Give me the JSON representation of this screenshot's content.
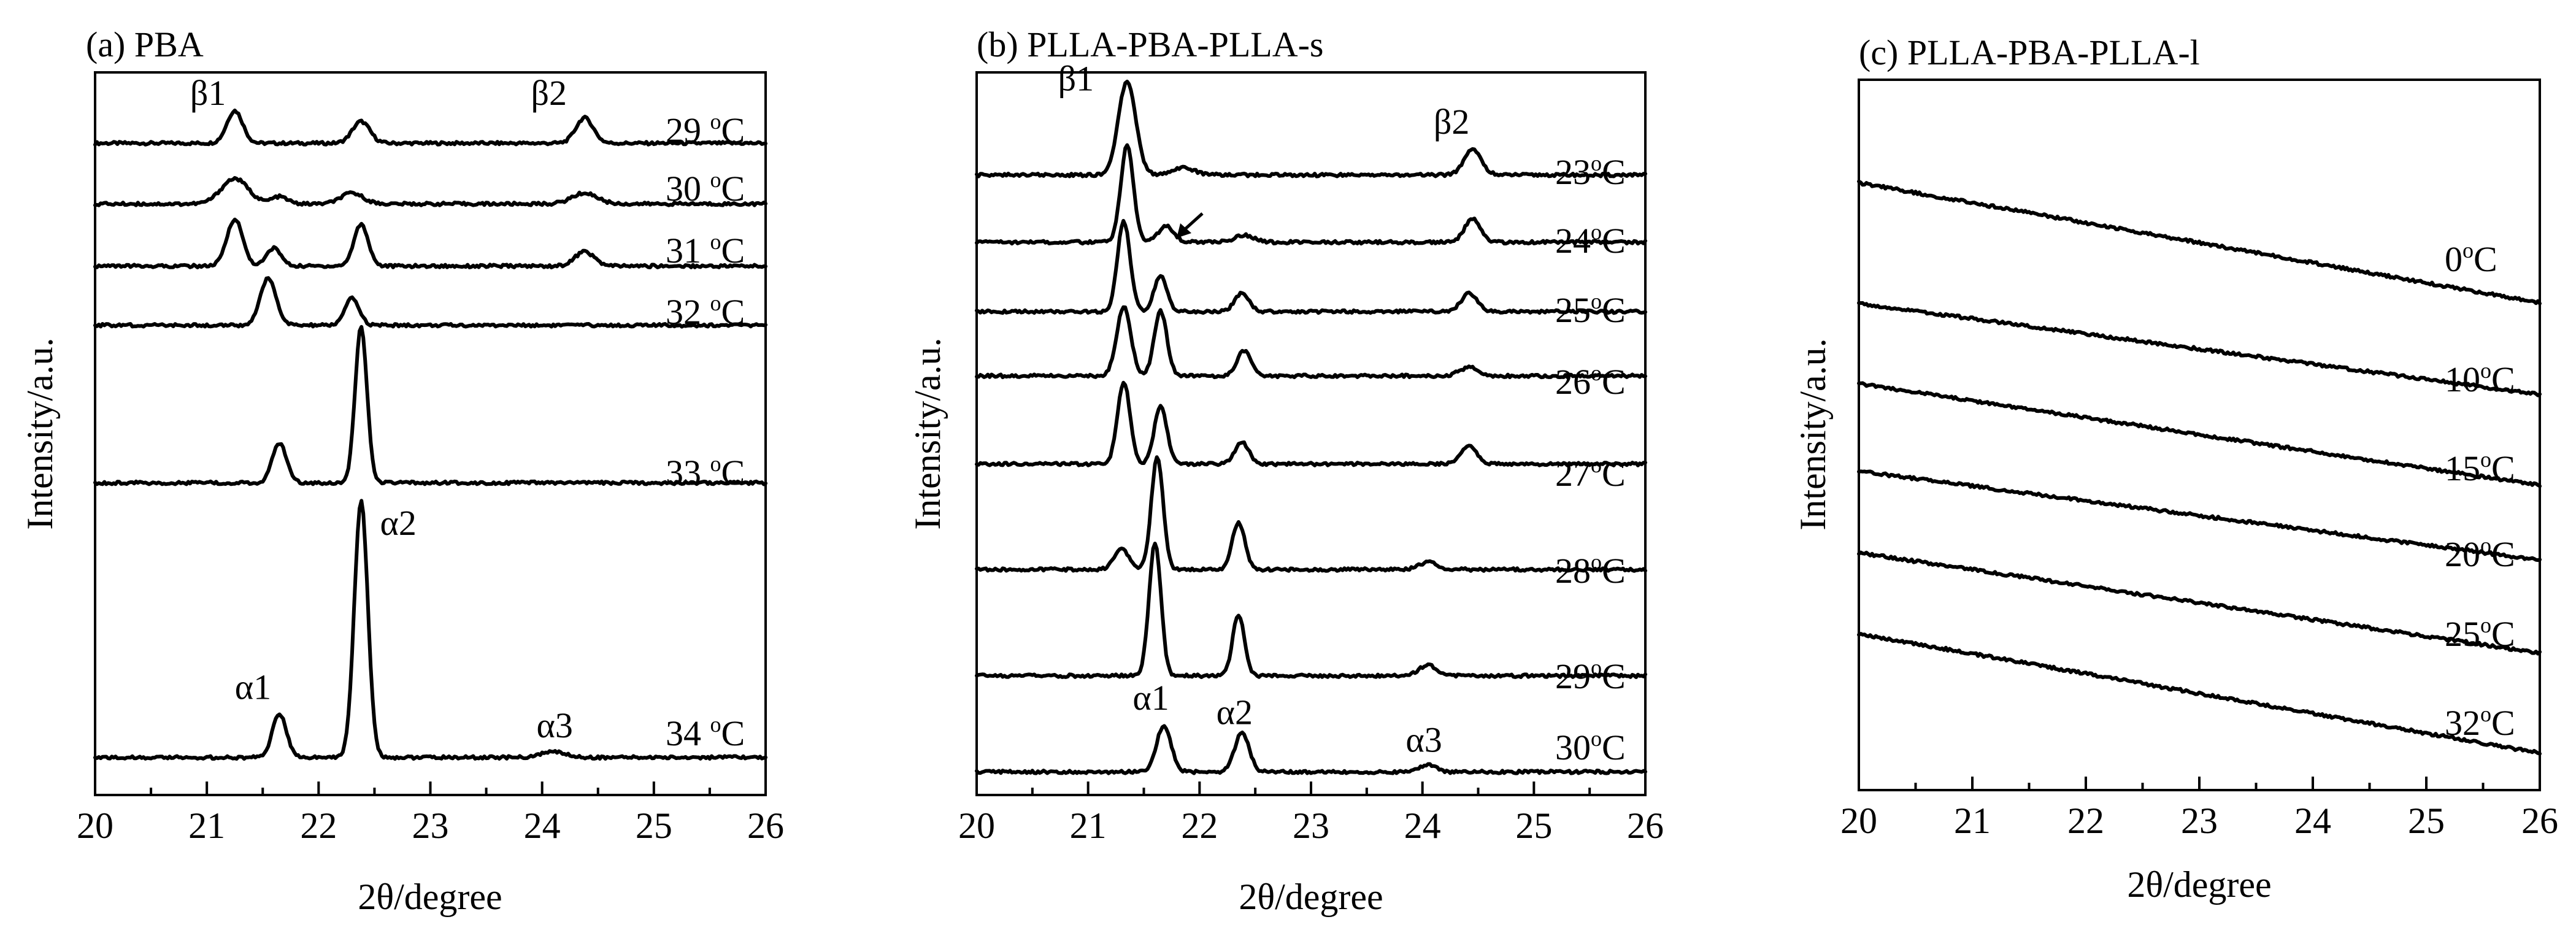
{
  "chart_data": [
    {
      "type": "line",
      "title": "(a) PBA",
      "xlabel": "2θ/degree",
      "ylabel": "Intensity/a.u.",
      "xlim": [
        20,
        26
      ],
      "xticks": [
        "20",
        "21",
        "22",
        "23",
        "24",
        "25",
        "26"
      ],
      "series": [
        {
          "name": "29 °C",
          "temp": "29",
          "baseline": 0.902,
          "slope": 0,
          "peaks": [
            [
              21.25,
              0.045,
              0.1
            ],
            [
              22.38,
              0.03,
              0.11
            ],
            [
              24.38,
              0.035,
              0.11
            ]
          ]
        },
        {
          "name": "30 °C",
          "temp": "30",
          "baseline": 0.818,
          "slope": 0,
          "peaks": [
            [
              21.25,
              0.035,
              0.17
            ],
            [
              21.65,
              0.01,
              0.1
            ],
            [
              22.3,
              0.015,
              0.14
            ],
            [
              24.38,
              0.015,
              0.16
            ]
          ]
        },
        {
          "name": "31 °C",
          "temp": "31",
          "baseline": 0.732,
          "slope": 0,
          "peaks": [
            [
              21.25,
              0.065,
              0.1
            ],
            [
              21.6,
              0.025,
              0.09
            ],
            [
              22.38,
              0.058,
              0.09
            ],
            [
              24.38,
              0.02,
              0.12
            ]
          ]
        },
        {
          "name": "32 °C",
          "temp": "32",
          "baseline": 0.65,
          "slope": 0,
          "peaks": [
            [
              21.55,
              0.065,
              0.1
            ],
            [
              22.3,
              0.037,
              0.09
            ]
          ]
        },
        {
          "name": "33 °C",
          "temp": "33",
          "baseline": 0.432,
          "slope": 0,
          "peaks": [
            [
              21.65,
              0.055,
              0.09
            ],
            [
              22.38,
              0.215,
              0.075
            ]
          ]
        },
        {
          "name": "34 °C",
          "temp": "34",
          "baseline": 0.052,
          "slope": 0,
          "peaks": [
            [
              21.65,
              0.06,
              0.09
            ],
            [
              22.38,
              0.355,
              0.085
            ],
            [
              24.1,
              0.008,
              0.15
            ]
          ]
        }
      ],
      "annotations": [
        {
          "text": "β1",
          "x": 20.85,
          "y": 0.955
        },
        {
          "text": "β2",
          "x": 23.9,
          "y": 0.955
        },
        {
          "text": "α2",
          "x": 22.55,
          "y": 0.36
        },
        {
          "text": "α1",
          "x": 21.25,
          "y": 0.133
        },
        {
          "text": "α3",
          "x": 23.95,
          "y": 0.08
        }
      ]
    },
    {
      "type": "line",
      "title": "(b) PLLA-PBA-PLLA-s",
      "xlabel": "2θ/degree",
      "ylabel": "Intensity/a.u.",
      "xlim": [
        20,
        26
      ],
      "xticks": [
        "20",
        "21",
        "22",
        "23",
        "24",
        "25",
        "26"
      ],
      "series": [
        {
          "name": "23°C",
          "temp": "23",
          "baseline": 0.858,
          "slope": 0,
          "peaks": [
            [
              21.35,
              0.13,
              0.11
            ],
            [
              21.85,
              0.01,
              0.15
            ],
            [
              24.45,
              0.035,
              0.11
            ]
          ]
        },
        {
          "name": "24°C",
          "temp": "24",
          "baseline": 0.765,
          "slope": 0,
          "peaks": [
            [
              21.35,
              0.135,
              0.08
            ],
            [
              21.7,
              0.022,
              0.1
            ],
            [
              22.4,
              0.01,
              0.12
            ],
            [
              24.45,
              0.033,
              0.1
            ]
          ]
        },
        {
          "name": "25°C",
          "temp": "25",
          "baseline": 0.669,
          "slope": 0,
          "peaks": [
            [
              21.32,
              0.125,
              0.08
            ],
            [
              21.65,
              0.05,
              0.08
            ],
            [
              22.38,
              0.025,
              0.09
            ],
            [
              24.42,
              0.025,
              0.1
            ]
          ]
        },
        {
          "name": "26°C",
          "temp": "26",
          "baseline": 0.58,
          "slope": 0,
          "peaks": [
            [
              21.32,
              0.095,
              0.09
            ],
            [
              21.65,
              0.09,
              0.08
            ],
            [
              22.4,
              0.035,
              0.09
            ],
            [
              24.42,
              0.012,
              0.12
            ]
          ]
        },
        {
          "name": "27°C",
          "temp": "27",
          "baseline": 0.458,
          "slope": 0,
          "peaks": [
            [
              21.32,
              0.113,
              0.08
            ],
            [
              21.65,
              0.08,
              0.08
            ],
            [
              22.38,
              0.03,
              0.09
            ],
            [
              24.42,
              0.025,
              0.1
            ]
          ]
        },
        {
          "name": "28°C",
          "temp": "28",
          "baseline": 0.312,
          "slope": 0,
          "peaks": [
            [
              21.3,
              0.03,
              0.09
            ],
            [
              21.62,
              0.155,
              0.075
            ],
            [
              22.35,
              0.065,
              0.08
            ],
            [
              24.05,
              0.01,
              0.12
            ]
          ]
        },
        {
          "name": "29°C",
          "temp": "29",
          "baseline": 0.165,
          "slope": 0,
          "peaks": [
            [
              21.6,
              0.185,
              0.075
            ],
            [
              22.35,
              0.085,
              0.075
            ],
            [
              24.05,
              0.015,
              0.11
            ]
          ]
        },
        {
          "name": "30°C",
          "temp": "30",
          "baseline": 0.032,
          "slope": 0,
          "peaks": [
            [
              21.68,
              0.065,
              0.09
            ],
            [
              22.38,
              0.055,
              0.09
            ],
            [
              24.05,
              0.01,
              0.1
            ]
          ]
        }
      ],
      "annotations": [
        {
          "text": "β1",
          "x": 20.73,
          "y": 0.975
        },
        {
          "text": "β2",
          "x": 24.1,
          "y": 0.915
        },
        {
          "text": "α1",
          "x": 21.4,
          "y": 0.118
        },
        {
          "text": "α2",
          "x": 22.15,
          "y": 0.098
        },
        {
          "text": "α3",
          "x": 23.85,
          "y": 0.06
        }
      ]
    },
    {
      "type": "line",
      "title": "(c) PLLA-PBA-PLLA-l",
      "xlabel": "2θ/degree",
      "ylabel": "Intensity/a.u.",
      "xlim": [
        20,
        26
      ],
      "xticks": [
        "20",
        "21",
        "22",
        "23",
        "24",
        "25",
        "26"
      ],
      "series": [
        {
          "name": "0°C",
          "temp": "0",
          "baseline": 0.855,
          "slope": -0.169,
          "peaks": []
        },
        {
          "name": "10°C",
          "temp": "10",
          "baseline": 0.685,
          "slope": -0.128,
          "peaks": []
        },
        {
          "name": "15°C",
          "temp": "15",
          "baseline": 0.572,
          "slope": -0.143,
          "peaks": []
        },
        {
          "name": "20°C",
          "temp": "20",
          "baseline": 0.449,
          "slope": -0.125,
          "peaks": []
        },
        {
          "name": "25°C",
          "temp": "25",
          "baseline": 0.334,
          "slope": -0.141,
          "peaks": []
        },
        {
          "name": "32°C",
          "temp": "32",
          "baseline": 0.22,
          "slope": -0.168,
          "peaks": []
        }
      ],
      "annotations": []
    }
  ]
}
